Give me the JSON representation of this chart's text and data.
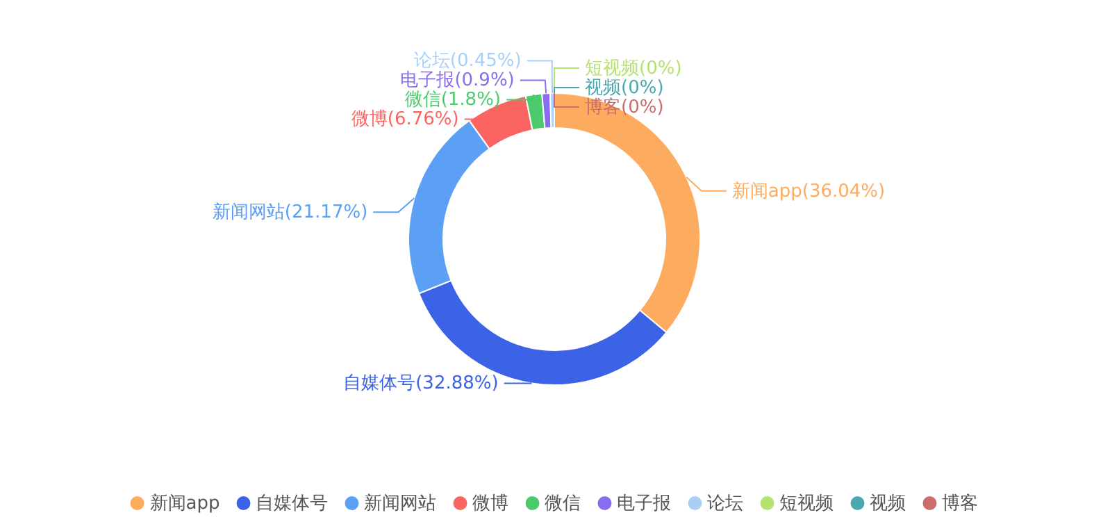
{
  "chart_data": {
    "type": "donut",
    "categories": [
      "新闻app",
      "自媒体号",
      "新闻网站",
      "微博",
      "微信",
      "电子报",
      "论坛",
      "短视频",
      "视频",
      "博客"
    ],
    "values": [
      36.04,
      32.88,
      21.17,
      6.76,
      1.8,
      0.9,
      0.45,
      0,
      0,
      0
    ],
    "value_labels": [
      "(36.04%)",
      "(32.88%)",
      "(21.17%)",
      "(6.76%)",
      "(1.8%)",
      "(0.9%)",
      "(0.45%)",
      "(0%)",
      "(0%)",
      "(0%)"
    ],
    "colors": [
      "#fdab5e",
      "#3c62e5",
      "#5ba0f5",
      "#fb6561",
      "#4ccb6c",
      "#8a6cef",
      "#a8d0f7",
      "#b5e270",
      "#4aa8ae",
      "#cd6c6c"
    ],
    "legend": "bottom"
  }
}
